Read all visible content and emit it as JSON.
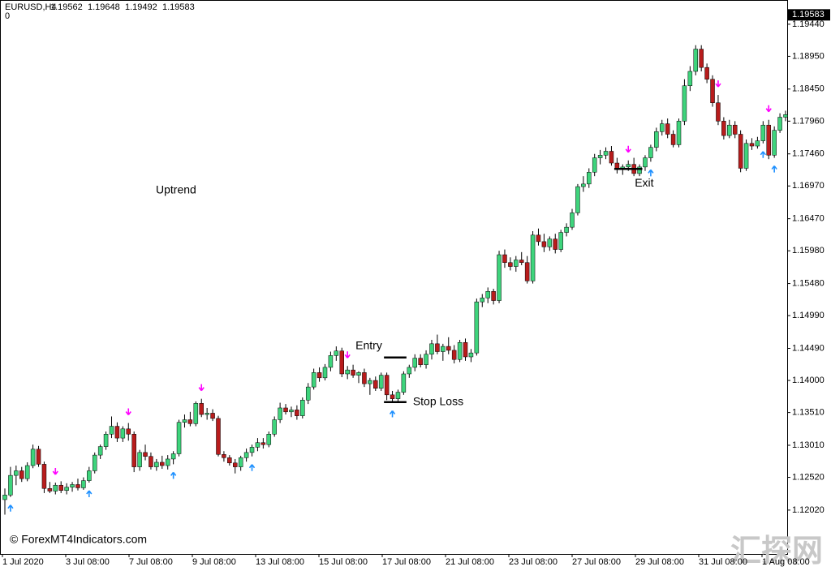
{
  "chart_data": {
    "type": "candlestick",
    "symbol": "EURUSD,H4",
    "ohlc": [
      1.19562,
      1.19648,
      1.19492,
      1.19583
    ],
    "indicator_value": 0,
    "current_price": 1.19583,
    "up_color": "#3ed47c",
    "down_color": "#b81c1c",
    "buy_color": "#1e90ff",
    "sell_color": "#ff00ff",
    "annotations": [
      "Uptrend"
    ],
    "watermarks": [
      "© ForexMT4Indicators.com",
      "汇探网"
    ],
    "x_labels": [
      "1 Jul 2020",
      "3 Jul 08:00",
      "7 Jul 08:00",
      "9 Jul 08:00",
      "13 Jul 08:00",
      "15 Jul 08:00",
      "17 Jul 08:00",
      "21 Jul 08:00",
      "23 Jul 08:00",
      "27 Jul 08:00",
      "29 Jul 08:00",
      "31 Jul 08:00",
      "1 Aug 08:00"
    ],
    "ylim": [
      1.1135,
      1.1981
    ],
    "yticks": [
      {
        "value": 1.1944,
        "label": "1.19440"
      },
      {
        "value": 1.1895,
        "label": "1.18950"
      },
      {
        "value": 1.1845,
        "label": "1.18450"
      },
      {
        "value": 1.1796,
        "label": "1.17960"
      },
      {
        "value": 1.1746,
        "label": "1.17460"
      },
      {
        "value": 1.1697,
        "label": "1.16970"
      },
      {
        "value": 1.1647,
        "label": "1.16470"
      },
      {
        "value": 1.1598,
        "label": "1.15980"
      },
      {
        "value": 1.1548,
        "label": "1.15480"
      },
      {
        "value": 1.1499,
        "label": "1.14990"
      },
      {
        "value": 1.1449,
        "label": "1.14490"
      },
      {
        "value": 1.14,
        "label": "1.14000"
      },
      {
        "value": 1.1351,
        "label": "1.13510"
      },
      {
        "value": 1.1301,
        "label": "1.13010"
      },
      {
        "value": 1.1252,
        "label": "1.12520"
      },
      {
        "value": 1.1202,
        "label": "1.12020"
      }
    ],
    "levels": [
      {
        "label": "Entry",
        "value": 1.1435,
        "from": 68,
        "to": 71
      },
      {
        "label": "Stop Loss",
        "value": 1.1367,
        "from": 68,
        "to": 71
      },
      {
        "label": "Exit",
        "value": 1.1723,
        "from": 109,
        "to": 113
      }
    ],
    "buy_signals": [
      1,
      15,
      30,
      44,
      69,
      115,
      135,
      137
    ],
    "sell_signals": [
      9,
      22,
      35,
      61,
      111,
      127,
      136
    ],
    "candles": [
      [
        1.1218,
        1.1235,
        1.1195,
        1.1225
      ],
      [
        1.1225,
        1.1268,
        1.1222,
        1.1255
      ],
      [
        1.1255,
        1.127,
        1.124,
        1.1262
      ],
      [
        1.1262,
        1.1268,
        1.1245,
        1.125
      ],
      [
        1.125,
        1.1275,
        1.1246,
        1.127
      ],
      [
        1.127,
        1.1302,
        1.1266,
        1.1295
      ],
      [
        1.1295,
        1.13,
        1.1268,
        1.1272
      ],
      [
        1.1272,
        1.1276,
        1.1228,
        1.1235
      ],
      [
        1.1235,
        1.1245,
        1.1228,
        1.1231
      ],
      [
        1.1231,
        1.1244,
        1.1226,
        1.124
      ],
      [
        1.124,
        1.1246,
        1.1228,
        1.1232
      ],
      [
        1.1232,
        1.1243,
        1.1226,
        1.1237
      ],
      [
        1.1237,
        1.1245,
        1.123,
        1.1241
      ],
      [
        1.1241,
        1.125,
        1.1232,
        1.1236
      ],
      [
        1.1236,
        1.1252,
        1.1233,
        1.1247
      ],
      [
        1.1247,
        1.1268,
        1.1244,
        1.1262
      ],
      [
        1.1262,
        1.129,
        1.1258,
        1.1286
      ],
      [
        1.1286,
        1.1302,
        1.128,
        1.1299
      ],
      [
        1.1299,
        1.1322,
        1.1294,
        1.1318
      ],
      [
        1.1318,
        1.1345,
        1.1312,
        1.133
      ],
      [
        1.133,
        1.1336,
        1.1306,
        1.1312
      ],
      [
        1.1312,
        1.133,
        1.1306,
        1.1326
      ],
      [
        1.1326,
        1.1335,
        1.1308,
        1.1318
      ],
      [
        1.1318,
        1.1322,
        1.126,
        1.1268
      ],
      [
        1.1268,
        1.1294,
        1.1262,
        1.129
      ],
      [
        1.129,
        1.1302,
        1.1278,
        1.1284
      ],
      [
        1.1284,
        1.129,
        1.1264,
        1.1268
      ],
      [
        1.1268,
        1.128,
        1.1262,
        1.1275
      ],
      [
        1.1275,
        1.1285,
        1.1265,
        1.127
      ],
      [
        1.127,
        1.1286,
        1.1264,
        1.128
      ],
      [
        1.128,
        1.1292,
        1.1272,
        1.1288
      ],
      [
        1.1288,
        1.134,
        1.1284,
        1.1336
      ],
      [
        1.1336,
        1.1348,
        1.1328,
        1.134
      ],
      [
        1.134,
        1.1352,
        1.133,
        1.1334
      ],
      [
        1.1334,
        1.1368,
        1.133,
        1.1365
      ],
      [
        1.1365,
        1.1372,
        1.1344,
        1.1348
      ],
      [
        1.1348,
        1.1358,
        1.134,
        1.135
      ],
      [
        1.135,
        1.1356,
        1.1338,
        1.1342
      ],
      [
        1.1342,
        1.1346,
        1.1284,
        1.1287
      ],
      [
        1.1287,
        1.1292,
        1.1276,
        1.1282
      ],
      [
        1.1282,
        1.1286,
        1.127,
        1.1274
      ],
      [
        1.1274,
        1.128,
        1.1258,
        1.1268
      ],
      [
        1.1268,
        1.1285,
        1.1262,
        1.1282
      ],
      [
        1.1282,
        1.1296,
        1.1276,
        1.129
      ],
      [
        1.129,
        1.1302,
        1.1284,
        1.1298
      ],
      [
        1.1298,
        1.1312,
        1.1292,
        1.1305
      ],
      [
        1.1305,
        1.1312,
        1.1296,
        1.1302
      ],
      [
        1.1302,
        1.1322,
        1.1298,
        1.1318
      ],
      [
        1.1318,
        1.1345,
        1.1314,
        1.134
      ],
      [
        1.134,
        1.1366,
        1.1335,
        1.1358
      ],
      [
        1.1358,
        1.1364,
        1.1348,
        1.1352
      ],
      [
        1.1352,
        1.136,
        1.1344,
        1.1355
      ],
      [
        1.1355,
        1.1362,
        1.134,
        1.1346
      ],
      [
        1.1346,
        1.1374,
        1.1342,
        1.137
      ],
      [
        1.137,
        1.1396,
        1.1364,
        1.139
      ],
      [
        1.139,
        1.1418,
        1.1386,
        1.1412
      ],
      [
        1.1412,
        1.142,
        1.1398,
        1.1404
      ],
      [
        1.1404,
        1.1425,
        1.14,
        1.142
      ],
      [
        1.142,
        1.1444,
        1.1414,
        1.1438
      ],
      [
        1.1438,
        1.1452,
        1.143,
        1.1445
      ],
      [
        1.1445,
        1.145,
        1.1405,
        1.141
      ],
      [
        1.141,
        1.1422,
        1.1402,
        1.1416
      ],
      [
        1.1416,
        1.1424,
        1.1404,
        1.1408
      ],
      [
        1.1408,
        1.1414,
        1.1396,
        1.1412
      ],
      [
        1.1412,
        1.1418,
        1.139,
        1.1395
      ],
      [
        1.1395,
        1.1404,
        1.1378,
        1.14
      ],
      [
        1.14,
        1.1406,
        1.1384,
        1.1388
      ],
      [
        1.1388,
        1.1412,
        1.1384,
        1.1408
      ],
      [
        1.1408,
        1.1412,
        1.137,
        1.1378
      ],
      [
        1.1378,
        1.1384,
        1.1366,
        1.1372
      ],
      [
        1.1372,
        1.1386,
        1.1368,
        1.1382
      ],
      [
        1.1382,
        1.1414,
        1.1378,
        1.141
      ],
      [
        1.141,
        1.1424,
        1.1404,
        1.142
      ],
      [
        1.142,
        1.144,
        1.1414,
        1.1434
      ],
      [
        1.1434,
        1.144,
        1.142,
        1.1424
      ],
      [
        1.1424,
        1.1446,
        1.1418,
        1.144
      ],
      [
        1.144,
        1.1462,
        1.1432,
        1.1456
      ],
      [
        1.1456,
        1.147,
        1.144,
        1.1444
      ],
      [
        1.1444,
        1.1456,
        1.143,
        1.1452
      ],
      [
        1.1452,
        1.1466,
        1.144,
        1.1446
      ],
      [
        1.1446,
        1.1454,
        1.1426,
        1.1432
      ],
      [
        1.1432,
        1.1462,
        1.1428,
        1.1458
      ],
      [
        1.1458,
        1.1464,
        1.143,
        1.1436
      ],
      [
        1.1436,
        1.1448,
        1.1428,
        1.1442
      ],
      [
        1.1442,
        1.1525,
        1.1438,
        1.152
      ],
      [
        1.152,
        1.1532,
        1.1512,
        1.1526
      ],
      [
        1.1526,
        1.1542,
        1.1518,
        1.1536
      ],
      [
        1.1536,
        1.154,
        1.1516,
        1.1522
      ],
      [
        1.1522,
        1.1598,
        1.1518,
        1.1592
      ],
      [
        1.1592,
        1.16,
        1.1572,
        1.158
      ],
      [
        1.158,
        1.1588,
        1.1568,
        1.1574
      ],
      [
        1.1574,
        1.159,
        1.1566,
        1.1584
      ],
      [
        1.1584,
        1.1596,
        1.1576,
        1.158
      ],
      [
        1.158,
        1.159,
        1.1548,
        1.1552
      ],
      [
        1.1552,
        1.1628,
        1.1548,
        1.1622
      ],
      [
        1.1622,
        1.1632,
        1.1606,
        1.1612
      ],
      [
        1.1612,
        1.1624,
        1.1596,
        1.1604
      ],
      [
        1.1604,
        1.162,
        1.1598,
        1.1616
      ],
      [
        1.1616,
        1.1624,
        1.1594,
        1.16
      ],
      [
        1.16,
        1.163,
        1.1596,
        1.1626
      ],
      [
        1.1626,
        1.164,
        1.162,
        1.1634
      ],
      [
        1.1634,
        1.1662,
        1.163,
        1.1656
      ],
      [
        1.1656,
        1.17,
        1.1652,
        1.1696
      ],
      [
        1.1696,
        1.1712,
        1.1688,
        1.17
      ],
      [
        1.17,
        1.1724,
        1.1694,
        1.1718
      ],
      [
        1.1718,
        1.1746,
        1.1712,
        1.174
      ],
      [
        1.174,
        1.1752,
        1.173,
        1.1744
      ],
      [
        1.1744,
        1.1756,
        1.1738,
        1.175
      ],
      [
        1.175,
        1.1758,
        1.1728,
        1.1732
      ],
      [
        1.1732,
        1.174,
        1.1716,
        1.1722
      ],
      [
        1.1722,
        1.173,
        1.1714,
        1.1726
      ],
      [
        1.1726,
        1.1736,
        1.172,
        1.173
      ],
      [
        1.173,
        1.174,
        1.1712,
        1.1716
      ],
      [
        1.1716,
        1.173,
        1.1712,
        1.1726
      ],
      [
        1.1726,
        1.1744,
        1.172,
        1.174
      ],
      [
        1.174,
        1.176,
        1.1734,
        1.1756
      ],
      [
        1.1756,
        1.1786,
        1.175,
        1.178
      ],
      [
        1.178,
        1.1798,
        1.1774,
        1.1792
      ],
      [
        1.1792,
        1.18,
        1.177,
        1.1776
      ],
      [
        1.1776,
        1.1782,
        1.1756,
        1.176
      ],
      [
        1.176,
        1.18,
        1.1756,
        1.1796
      ],
      [
        1.1796,
        1.186,
        1.179,
        1.185
      ],
      [
        1.185,
        1.188,
        1.1842,
        1.1872
      ],
      [
        1.1872,
        1.1912,
        1.1866,
        1.1906
      ],
      [
        1.1906,
        1.1912,
        1.1872,
        1.1878
      ],
      [
        1.1878,
        1.1884,
        1.1854,
        1.186
      ],
      [
        1.186,
        1.1866,
        1.1818,
        1.1824
      ],
      [
        1.1824,
        1.1836,
        1.179,
        1.1796
      ],
      [
        1.1796,
        1.1802,
        1.1768,
        1.1774
      ],
      [
        1.1774,
        1.1798,
        1.177,
        1.179
      ],
      [
        1.179,
        1.1796,
        1.177,
        1.1776
      ],
      [
        1.1776,
        1.1782,
        1.1718,
        1.1724
      ],
      [
        1.1724,
        1.1768,
        1.172,
        1.1762
      ],
      [
        1.1762,
        1.177,
        1.1752,
        1.1758
      ],
      [
        1.1758,
        1.1772,
        1.1754,
        1.1766
      ],
      [
        1.1766,
        1.1796,
        1.1762,
        1.179
      ],
      [
        1.179,
        1.1798,
        1.1738,
        1.1744
      ],
      [
        1.1744,
        1.1788,
        1.174,
        1.1782
      ],
      [
        1.1782,
        1.1808,
        1.1778,
        1.1802
      ],
      [
        1.1802,
        1.1812,
        1.1796,
        1.1806
      ]
    ]
  }
}
